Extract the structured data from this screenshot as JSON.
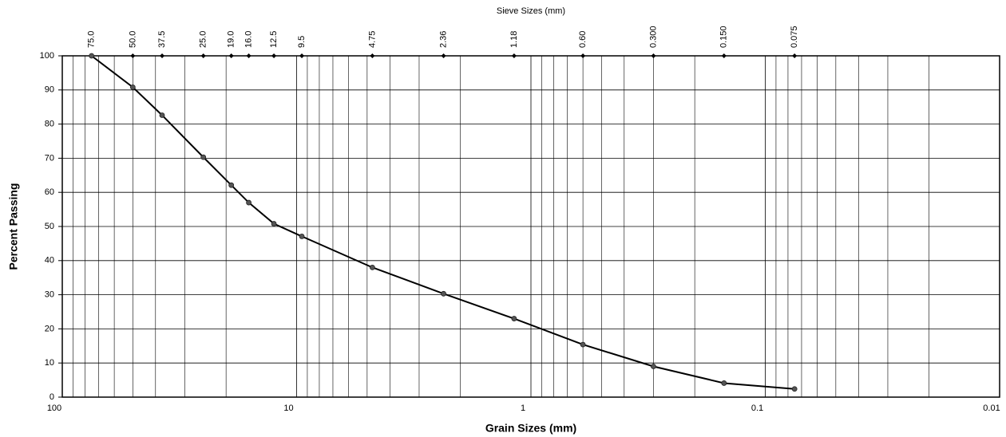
{
  "chart_data": {
    "type": "line",
    "top_axis_title": "Sieve Sizes (mm)",
    "x_label": "Grain Sizes (mm)",
    "y_label": "Percent Passing",
    "log_x": true,
    "grid": true,
    "xlim": [
      100,
      0.01
    ],
    "ylim": [
      0,
      100
    ],
    "xticks": [
      100,
      10,
      1,
      0.1,
      0.01
    ],
    "x_minor_ticks": [
      90,
      80,
      70,
      60,
      50,
      40,
      30,
      20,
      9,
      8,
      7,
      6,
      5,
      4,
      3,
      2,
      0.9,
      0.8,
      0.7,
      0.6,
      0.5,
      0.4,
      0.3,
      0.2,
      0.09,
      0.08,
      0.07,
      0.06,
      0.05,
      0.04,
      0.03,
      0.02
    ],
    "yticks": [
      0,
      10,
      20,
      30,
      40,
      50,
      60,
      70,
      80,
      90,
      100
    ],
    "top_ticks": [
      {
        "value": 75,
        "label": "75.0"
      },
      {
        "value": 50,
        "label": "50.0"
      },
      37.5,
      {
        "value": 25,
        "label": "25.0"
      },
      {
        "value": 19,
        "label": "19.0"
      },
      {
        "value": 16,
        "label": "16.0"
      },
      12.5,
      9.5,
      4.75,
      2.36,
      1.18,
      {
        "value": 0.6,
        "label": "0.60"
      },
      {
        "value": 0.3,
        "label": "0.300"
      },
      {
        "value": 0.15,
        "label": "0.150"
      },
      0.075
    ],
    "series": [
      {
        "name": "Percent Passing",
        "color": "#000000",
        "x": [
          75,
          50,
          37.5,
          25,
          19,
          16,
          12.5,
          9.5,
          4.75,
          2.36,
          1.18,
          0.6,
          0.3,
          0.15,
          0.075
        ],
        "values": [
          100,
          90.8,
          82.6,
          70.3,
          62.1,
          57.0,
          50.8,
          47.1,
          38.0,
          30.3,
          23.0,
          15.4,
          9.0,
          4.1,
          2.4
        ]
      }
    ]
  }
}
